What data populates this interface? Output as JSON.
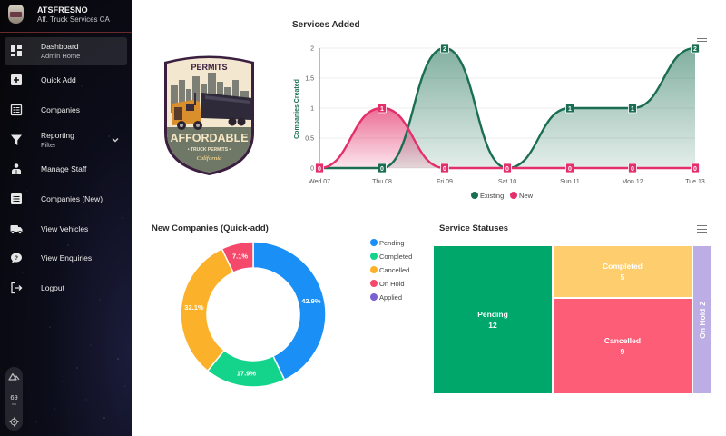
{
  "sidebar": {
    "brand": {
      "title": "ATSFRESNO",
      "subtitle": "Aff. Truck Services CA",
      "logo_icon": "company-logo"
    },
    "items": [
      {
        "label": "Dashboard",
        "sublabel": "Admin Home",
        "icon": "dashboard-icon",
        "active": true
      },
      {
        "label": "Quick Add",
        "icon": "plus-square-icon"
      },
      {
        "label": "Companies",
        "icon": "list-icon"
      },
      {
        "label": "Reporting",
        "sublabel": "Filter",
        "icon": "filter-icon",
        "expandable": true
      },
      {
        "label": "Manage Staff",
        "icon": "staff-icon"
      },
      {
        "label": "Companies (New)",
        "icon": "list-alt-icon"
      },
      {
        "label": "View Vehicles",
        "icon": "truck-icon"
      },
      {
        "label": "View Enquiries",
        "icon": "question-bubble-icon"
      },
      {
        "label": "Logout",
        "icon": "logout-icon"
      }
    ],
    "widget": {
      "value": "69",
      "unit": "ms"
    }
  },
  "logo": {
    "top_text": "PERMITS",
    "main_text": "AFFORDABLE",
    "sub_text": "• TRUCK PERMITS •",
    "script_text": "California"
  },
  "services_chart": {
    "title": "Services Added",
    "menu_icon": "hamburger-icon"
  },
  "companies_chart": {
    "title": "New Companies (Quick-add)"
  },
  "statuses_chart": {
    "title": "Service Statuses",
    "menu_icon": "hamburger-icon"
  },
  "chart_data": [
    {
      "type": "area",
      "title": "Services Added",
      "xlabel": "",
      "ylabel": "Companies Created",
      "categories": [
        "Wed 07",
        "Thu 08",
        "Fri 09",
        "Sat 10",
        "Sun 11",
        "Mon 12",
        "Tue 13"
      ],
      "yticks": [
        "0",
        "0.5",
        "1",
        "1.5",
        "2"
      ],
      "ylim": [
        0,
        2
      ],
      "grid": true,
      "legend_position": "bottom",
      "series": [
        {
          "name": "Existing",
          "color": "#1b6e53",
          "values": [
            0,
            0,
            2,
            0,
            1,
            1,
            2
          ]
        },
        {
          "name": "New",
          "color": "#e3306a",
          "values": [
            0,
            1,
            0,
            0,
            0,
            0,
            0
          ]
        }
      ]
    },
    {
      "type": "pie",
      "subtype": "donut",
      "title": "New Companies (Quick-add)",
      "legend_position": "right",
      "categories": [
        "Pending",
        "Completed",
        "Cancelled",
        "On Hold",
        "Applied"
      ],
      "values": [
        42.9,
        17.9,
        32.1,
        7.1,
        0
      ],
      "labels": [
        "42.9%",
        "17.9%",
        "32.1%",
        "7.1%",
        ""
      ],
      "colors": [
        "#1a8ff5",
        "#13d48a",
        "#fbb22a",
        "#f4496a",
        "#7a5fd0"
      ]
    },
    {
      "type": "treemap",
      "title": "Service Statuses",
      "categories": [
        "Pending",
        "Completed",
        "Cancelled",
        "On Hold"
      ],
      "values": [
        12,
        5,
        9,
        2
      ],
      "colors": [
        "#00a76a",
        "#fdcd6e",
        "#fe5d78",
        "#bcaee5"
      ]
    }
  ]
}
